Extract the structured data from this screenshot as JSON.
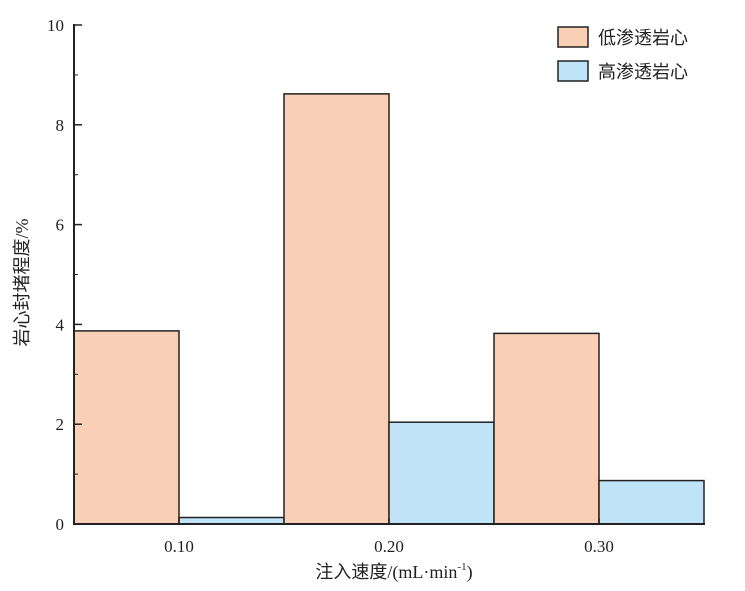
{
  "chart_data": {
    "type": "bar",
    "categories": [
      "0.10",
      "0.20",
      "0.30"
    ],
    "series": [
      {
        "name": "低渗透岩心",
        "values": [
          3.87,
          8.62,
          3.82
        ],
        "color": "#f9cfb6"
      },
      {
        "name": "高渗透岩心",
        "values": [
          0.13,
          2.04,
          0.87
        ],
        "color": "#bfe4f7"
      }
    ],
    "xlabel": "注入速度/(mL·min⁻¹)",
    "ylabel": "岩心封堵程度/%",
    "ylim": [
      0,
      10
    ],
    "yticks": [
      "0",
      "2",
      "4",
      "6",
      "8",
      "10"
    ],
    "grid": false,
    "legend_position": "top-right"
  }
}
